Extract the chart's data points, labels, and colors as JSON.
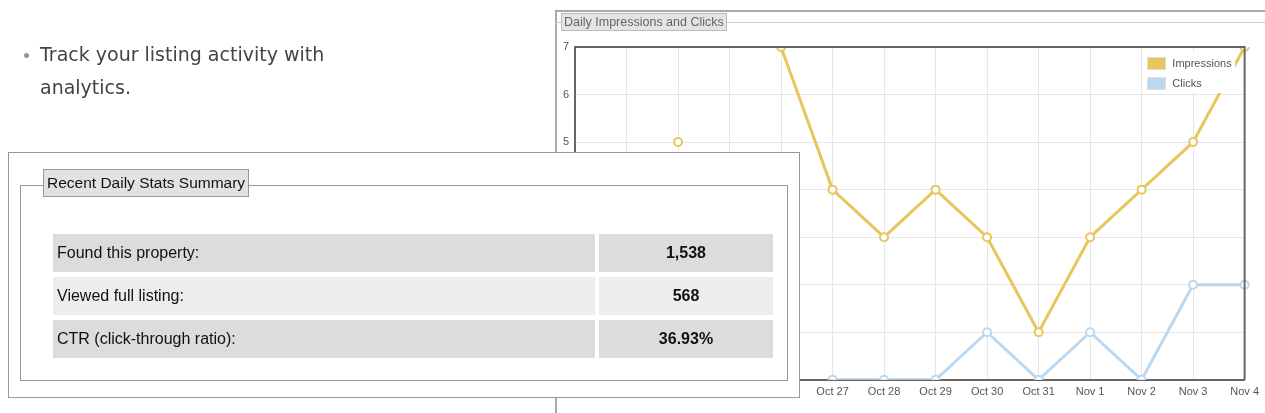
{
  "chart_data": [
    {
      "type": "other",
      "annotations": [
        "Track your listing activity with analytics."
      ]
    },
    {
      "type": "line",
      "title": "Daily Impressions and Clicks",
      "categories": [
        null,
        null,
        null,
        null,
        null,
        "Oct 27",
        "Oct 28",
        "Oct 29",
        "Oct 30",
        "Oct 31",
        "Nov 1",
        "Nov 2",
        "Nov 3",
        "Nov 4"
      ],
      "series": [
        {
          "name": "Impressions",
          "color": "#e8c65e",
          "values": [
            null,
            null,
            5,
            null,
            7,
            4,
            3,
            4,
            3,
            1,
            3,
            4,
            5,
            7
          ]
        },
        {
          "name": "Clicks",
          "color": "#bcd8f0",
          "values": [
            null,
            null,
            null,
            null,
            null,
            0,
            0,
            0,
            1,
            0,
            1,
            0,
            2,
            2
          ]
        }
      ],
      "ylim": [
        0,
        7
      ],
      "yticks": [
        {
          "value": 0,
          "label": null
        },
        {
          "value": 1,
          "label": null
        },
        {
          "value": 2,
          "label": null
        },
        {
          "value": 3,
          "label": null
        },
        {
          "value": 4,
          "label": null
        },
        5,
        6,
        7
      ],
      "grid": true,
      "legend": "top right",
      "marker": "circle",
      "line_style": "solid"
    },
    {
      "type": "other",
      "title": "Recent Daily Stats Summary",
      "annotations": [
        "Found this property:",
        "1,538",
        "Viewed full listing:",
        "568",
        "CTR (click-through ratio):",
        "36.93%"
      ]
    }
  ]
}
